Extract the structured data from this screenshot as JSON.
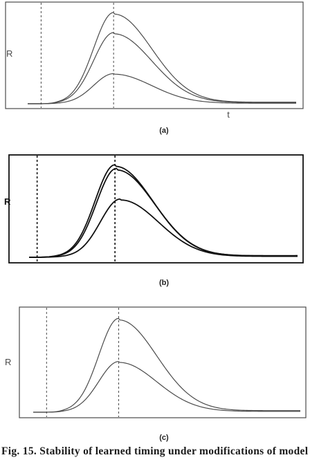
{
  "caption": "Fig. 15. Stability of learned timing under modifications of model",
  "colors": {
    "ink": "#4a4a4a",
    "ink_dark": "#111111"
  },
  "chart_data": [
    {
      "type": "line",
      "panel_label": "(a)",
      "ylabel": "R",
      "xlabel": "t",
      "grid": false,
      "markers": {
        "onset": 0.5,
        "cs_time": 3.2
      },
      "xlim": [
        0,
        10
      ],
      "ylim": [
        0,
        1.08
      ],
      "series": [
        {
          "peak_t": 3.2,
          "peak": 1.0
        },
        {
          "peak_t": 3.2,
          "peak": 0.78
        },
        {
          "peak_t": 3.2,
          "peak": 0.33
        }
      ]
    },
    {
      "type": "line",
      "panel_label": "(b)",
      "ylabel": "R",
      "xlabel": "",
      "grid": false,
      "markers": {
        "onset": 0.3,
        "cs_time": 3.2
      },
      "xlim": [
        0,
        10
      ],
      "ylim": [
        0,
        1.08
      ],
      "series": [
        {
          "peak_t": 3.2,
          "peak": 1.0
        },
        {
          "peak_t": 3.25,
          "peak": 0.96
        },
        {
          "peak_t": 3.4,
          "peak": 0.63
        }
      ]
    },
    {
      "type": "line",
      "panel_label": "(c)",
      "ylabel": "R",
      "xlabel": "",
      "grid": false,
      "markers": {
        "onset": 0.5,
        "cs_time": 3.2
      },
      "xlim": [
        0,
        10
      ],
      "ylim": [
        0,
        1.08
      ],
      "series": [
        {
          "peak_t": 3.2,
          "peak": 1.0
        },
        {
          "peak_t": 3.2,
          "peak": 0.54
        }
      ]
    }
  ]
}
